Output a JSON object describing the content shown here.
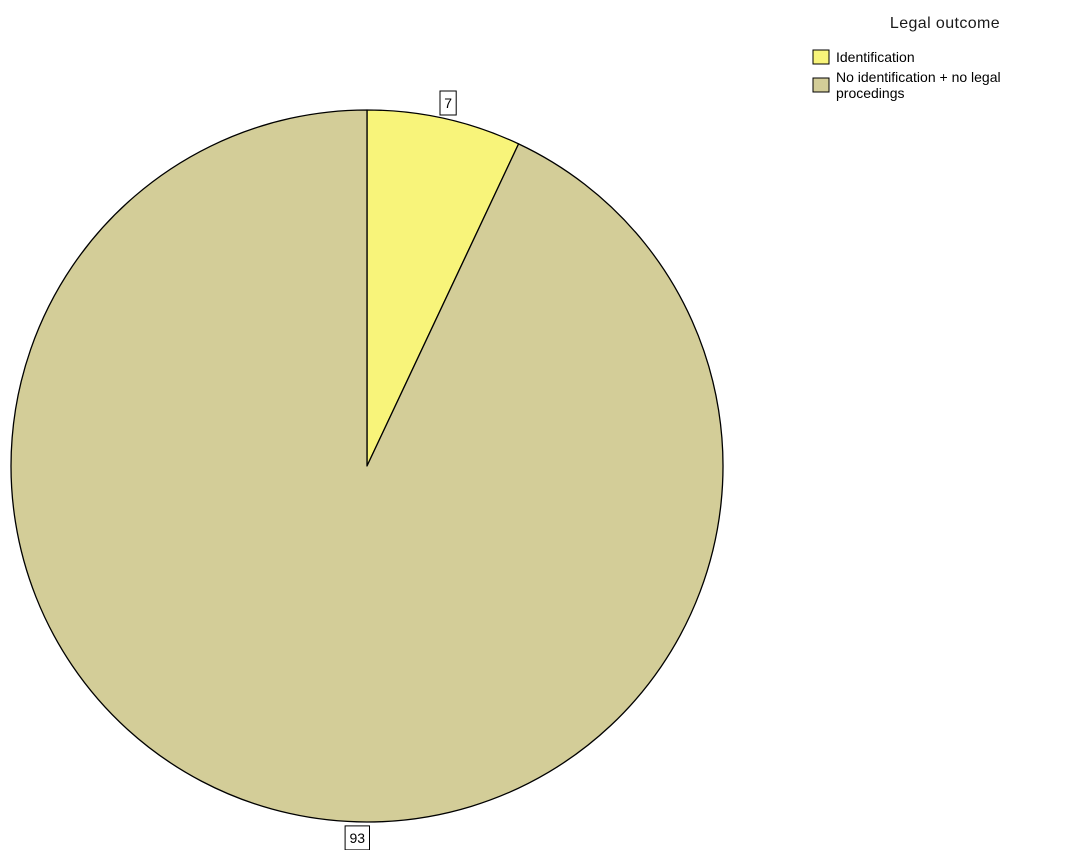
{
  "chart_data": {
    "type": "pie",
    "title": "",
    "legend": {
      "title": "Legal outcome",
      "position": "top-right"
    },
    "start_angle_deg": 0,
    "direction": "clockwise",
    "slices": [
      {
        "name": "Identification",
        "legend_lines": [
          "Identification"
        ],
        "value": 7,
        "label": "7",
        "color": "#f8f47a"
      },
      {
        "name": "No identification + no legal procedings",
        "legend_lines": [
          "No identification + no legal",
          "procedings"
        ],
        "value": 93,
        "label": "93",
        "color": "#d3cd98"
      }
    ]
  }
}
